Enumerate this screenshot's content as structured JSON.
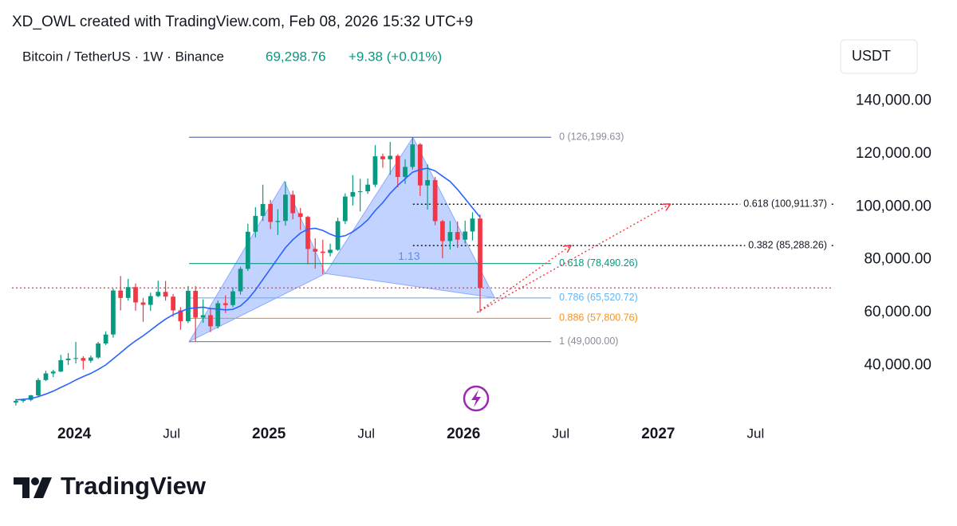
{
  "header": {
    "text": "XD_OWL created with TradingView.com, Feb 08, 2026 15:32 UTC+9"
  },
  "footer": {
    "brand": "TradingView"
  },
  "chart_data": {
    "type": "candlestick",
    "legend": {
      "symbol": "Bitcoin / TetherUS · 1W · Binance",
      "price": "69,298.76",
      "change": "+9.38 (+0.01%)"
    },
    "currency": "USDT",
    "xlim": [
      2023.68,
      2027.9
    ],
    "xticks": [
      2024,
      {
        "value": 2024.5,
        "label": "Jul"
      },
      2025,
      {
        "value": 2025.5,
        "label": "Jul"
      },
      2026,
      {
        "value": 2026.5,
        "label": "Jul"
      },
      2027,
      {
        "value": 2027.5,
        "label": "Jul"
      }
    ],
    "ylim": [
      20000,
      164500
    ],
    "yticks": [
      {
        "value": 40000,
        "label": "40,000.00"
      },
      {
        "value": 60000,
        "label": "60,000.00"
      },
      {
        "value": 80000,
        "label": "80,000.00"
      },
      {
        "value": 100000,
        "label": "100,000.00"
      },
      {
        "value": 120000,
        "label": "120,000.00"
      },
      {
        "value": 140000,
        "label": "140,000.00"
      }
    ],
    "grid": false,
    "up_color": "#089981",
    "down_color": "#f23645",
    "x": [
      2023.7,
      2023.738,
      2023.777,
      2023.815,
      2023.854,
      2023.892,
      2023.931,
      2023.969,
      2024.008,
      2024.046,
      2024.085,
      2024.123,
      2024.162,
      2024.2,
      2024.238,
      2024.277,
      2024.315,
      2024.354,
      2024.392,
      2024.431,
      2024.469,
      2024.508,
      2024.546,
      2024.585,
      2024.623,
      2024.662,
      2024.7,
      2024.738,
      2024.777,
      2024.815,
      2024.854,
      2024.892,
      2024.931,
      2024.969,
      2025.008,
      2025.046,
      2025.085,
      2025.123,
      2025.162,
      2025.2,
      2025.238,
      2025.277,
      2025.315,
      2025.354,
      2025.392,
      2025.431,
      2025.469,
      2025.508,
      2025.546,
      2025.585,
      2025.623,
      2025.662,
      2025.7,
      2025.738,
      2025.777,
      2025.815,
      2025.854,
      2025.892,
      2025.931,
      2025.969,
      2026.008,
      2026.046,
      2026.085
    ],
    "open": [
      26000,
      26600,
      27000,
      28700,
      34500,
      37000,
      37700,
      42000,
      42600,
      42800,
      41800,
      43000,
      48300,
      51700,
      68300,
      65500,
      69600,
      63800,
      62900,
      66200,
      67800,
      66000,
      60800,
      56700,
      68200,
      58100,
      59000,
      54800,
      63500,
      62800,
      68000,
      76500,
      90500,
      96500,
      101000,
      94200,
      94600,
      104500,
      97500,
      96100,
      84000,
      83000,
      82500,
      83700,
      94500,
      103800,
      105500,
      105800,
      108300,
      119000,
      117900,
      119200,
      111200,
      115000,
      123500,
      108000,
      110000,
      94500,
      87000,
      90400,
      87500,
      90600,
      95500
    ],
    "high": [
      27400,
      27500,
      28900,
      35200,
      38000,
      38400,
      44000,
      44700,
      48900,
      43500,
      43800,
      48900,
      52900,
      69000,
      73800,
      72700,
      71000,
      65500,
      67500,
      72000,
      71900,
      67000,
      62000,
      70000,
      70000,
      65000,
      61800,
      64500,
      66500,
      69500,
      77300,
      93500,
      99800,
      108300,
      102500,
      99000,
      109500,
      106000,
      99500,
      96500,
      88000,
      87500,
      86000,
      95800,
      105000,
      111900,
      110500,
      110600,
      123200,
      120000,
      124400,
      119800,
      117900,
      126199.63,
      124000,
      116000,
      111200,
      95000,
      94600,
      94400,
      94700,
      97900,
      97000
    ],
    "low": [
      24900,
      26000,
      26500,
      28100,
      34100,
      35600,
      37500,
      40200,
      40800,
      38500,
      41000,
      42500,
      47700,
      50500,
      60800,
      64500,
      60700,
      56500,
      60600,
      65800,
      64500,
      58400,
      53500,
      56000,
      49000,
      56100,
      52600,
      54000,
      59800,
      62000,
      66800,
      75700,
      88400,
      94600,
      91500,
      89300,
      92800,
      95200,
      91200,
      78200,
      76600,
      74500,
      81200,
      83300,
      93400,
      100400,
      98200,
      104800,
      107400,
      114700,
      112000,
      107300,
      108600,
      114000,
      104000,
      98900,
      93000,
      80500,
      83800,
      84400,
      86000,
      87200,
      60000
    ],
    "close": [
      26600,
      27000,
      28700,
      34500,
      37000,
      37700,
      42000,
      42600,
      42800,
      41800,
      43000,
      48300,
      51700,
      68300,
      65500,
      69600,
      63800,
      62900,
      66200,
      67800,
      66000,
      60800,
      56700,
      68200,
      58100,
      59000,
      54800,
      63500,
      62800,
      68000,
      76500,
      90500,
      96500,
      101000,
      94200,
      94600,
      104500,
      97500,
      96100,
      84000,
      83000,
      82500,
      83700,
      94500,
      103800,
      105500,
      105800,
      108300,
      119000,
      117900,
      119200,
      111200,
      115000,
      123500,
      108000,
      110000,
      94500,
      87000,
      90400,
      87500,
      90600,
      95500,
      69298.76
    ],
    "moving_average": {
      "color": "#2962ff",
      "values": [
        27000,
        27200,
        27500,
        28200,
        29200,
        30300,
        31700,
        33000,
        34500,
        35800,
        37000,
        38500,
        40200,
        42500,
        44800,
        47200,
        49300,
        51200,
        53300,
        55500,
        57500,
        59200,
        60300,
        61500,
        61800,
        62000,
        61500,
        61300,
        61000,
        61200,
        62500,
        65000,
        68500,
        72500,
        76500,
        80500,
        84500,
        87500,
        90000,
        91500,
        91800,
        91000,
        89600,
        88500,
        89000,
        90500,
        92500,
        95000,
        98500,
        101500,
        105000,
        108000,
        110500,
        113000,
        114000,
        114500,
        113500,
        111500,
        109500,
        106500,
        103000,
        99500,
        96000
      ]
    },
    "last_price": 69298.76,
    "last_price_color": "#f23645",
    "pattern": {
      "color": "#2962ff",
      "x": [
        2024.59,
        2025.08,
        2025.29,
        2025.74,
        2026.16
      ],
      "y": [
        49000,
        109500,
        74700,
        126199.63,
        65520.72
      ]
    },
    "annotations": [
      {
        "text": "1.13",
        "x": 2025.72,
        "y": 81000,
        "color": "#5b8def"
      }
    ],
    "fib_sets": [
      {
        "x_range": [
          2024.59,
          2026.45
        ],
        "style": "solid",
        "levels": [
          {
            "value": 126199.63,
            "label": "0 (126,199.63)",
            "color": "#6b6fa8",
            "label_color": "#8a8d98"
          },
          {
            "value": 78490.26,
            "label": "0.618 (78,490.26)",
            "color": "#089981",
            "label_color": "#089981"
          },
          {
            "value": 65520.72,
            "label": "0.786 (65,520.72)",
            "color": "#64b5f6",
            "label_color": "#64b5f6"
          },
          {
            "value": 57800.76,
            "label": "0.886 (57,800.76)",
            "color": "#f7931a",
            "label_color": "#f7931a"
          },
          {
            "value": 49000,
            "label": "1 (49,000.00)",
            "color": "#787b86",
            "label_color": "#8a8d98"
          }
        ]
      },
      {
        "x_range": [
          2025.74,
          2027.9
        ],
        "style": "dotted",
        "levels": [
          {
            "value": 100911.37,
            "label": "0.618 (100,911.37)",
            "color": "#131722",
            "label_color": "#131722"
          },
          {
            "value": 85288.26,
            "label": "0.382 (85,288.26)",
            "color": "#131722",
            "label_color": "#131722"
          }
        ]
      }
    ],
    "projections": {
      "color": "#f23645",
      "lines": [
        {
          "x": [
            2026.07,
            2026.55
          ],
          "y": [
            60000,
            85288.26
          ]
        },
        {
          "x": [
            2026.07,
            2027.06
          ],
          "y": [
            60000,
            100911.37
          ]
        }
      ]
    }
  }
}
